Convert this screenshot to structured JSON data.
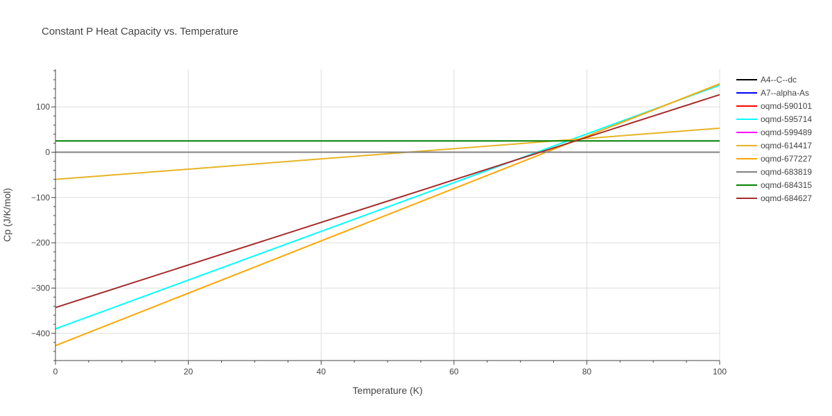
{
  "chart_data": {
    "type": "line",
    "title": "Constant P Heat Capacity vs. Temperature",
    "xlabel": "Temperature (K)",
    "ylabel": "Cp (J/K/mol)",
    "xlim": [
      0,
      100
    ],
    "ylim": [
      -460,
      183
    ],
    "x_ticks": [
      0,
      20,
      40,
      60,
      80,
      100
    ],
    "y_ticks": [
      -400,
      -300,
      -200,
      -100,
      0,
      100
    ],
    "y_tick_labels": [
      "−400",
      "−300",
      "−200",
      "−100",
      "0",
      "100"
    ],
    "grid": true,
    "legend_position": "right",
    "series": [
      {
        "name": "A4--C--dc",
        "color": "#000000",
        "x": [
          0,
          100
        ],
        "y": [
          0,
          0
        ]
      },
      {
        "name": "A7--alpha-As",
        "color": "#0000ff",
        "x": [
          0,
          100
        ],
        "y": [
          0,
          0
        ]
      },
      {
        "name": "oqmd-590101",
        "color": "#ff0000",
        "x": [
          0,
          100
        ],
        "y": [
          0,
          0
        ]
      },
      {
        "name": "oqmd-595714",
        "color": "#00ffff",
        "x": [
          0,
          100
        ],
        "y": [
          -390,
          148
        ]
      },
      {
        "name": "oqmd-599489",
        "color": "#ff00ff",
        "x": [
          0,
          100
        ],
        "y": [
          0,
          0
        ]
      },
      {
        "name": "oqmd-614417",
        "color": "#e6b422",
        "x": [
          0,
          100
        ],
        "y": [
          -60,
          53
        ]
      },
      {
        "name": "oqmd-677227",
        "color": "#ffa500",
        "x": [
          0,
          100
        ],
        "y": [
          -427,
          151
        ]
      },
      {
        "name": "oqmd-683819",
        "color": "#808080",
        "x": [
          0,
          100
        ],
        "y": [
          0,
          0
        ]
      },
      {
        "name": "oqmd-684315",
        "color": "#008000",
        "x": [
          0,
          100
        ],
        "y": [
          24.9,
          24.9
        ]
      },
      {
        "name": "oqmd-684627",
        "color": "#a52a2a",
        "x": [
          0,
          100
        ],
        "y": [
          -343,
          127
        ]
      }
    ]
  }
}
